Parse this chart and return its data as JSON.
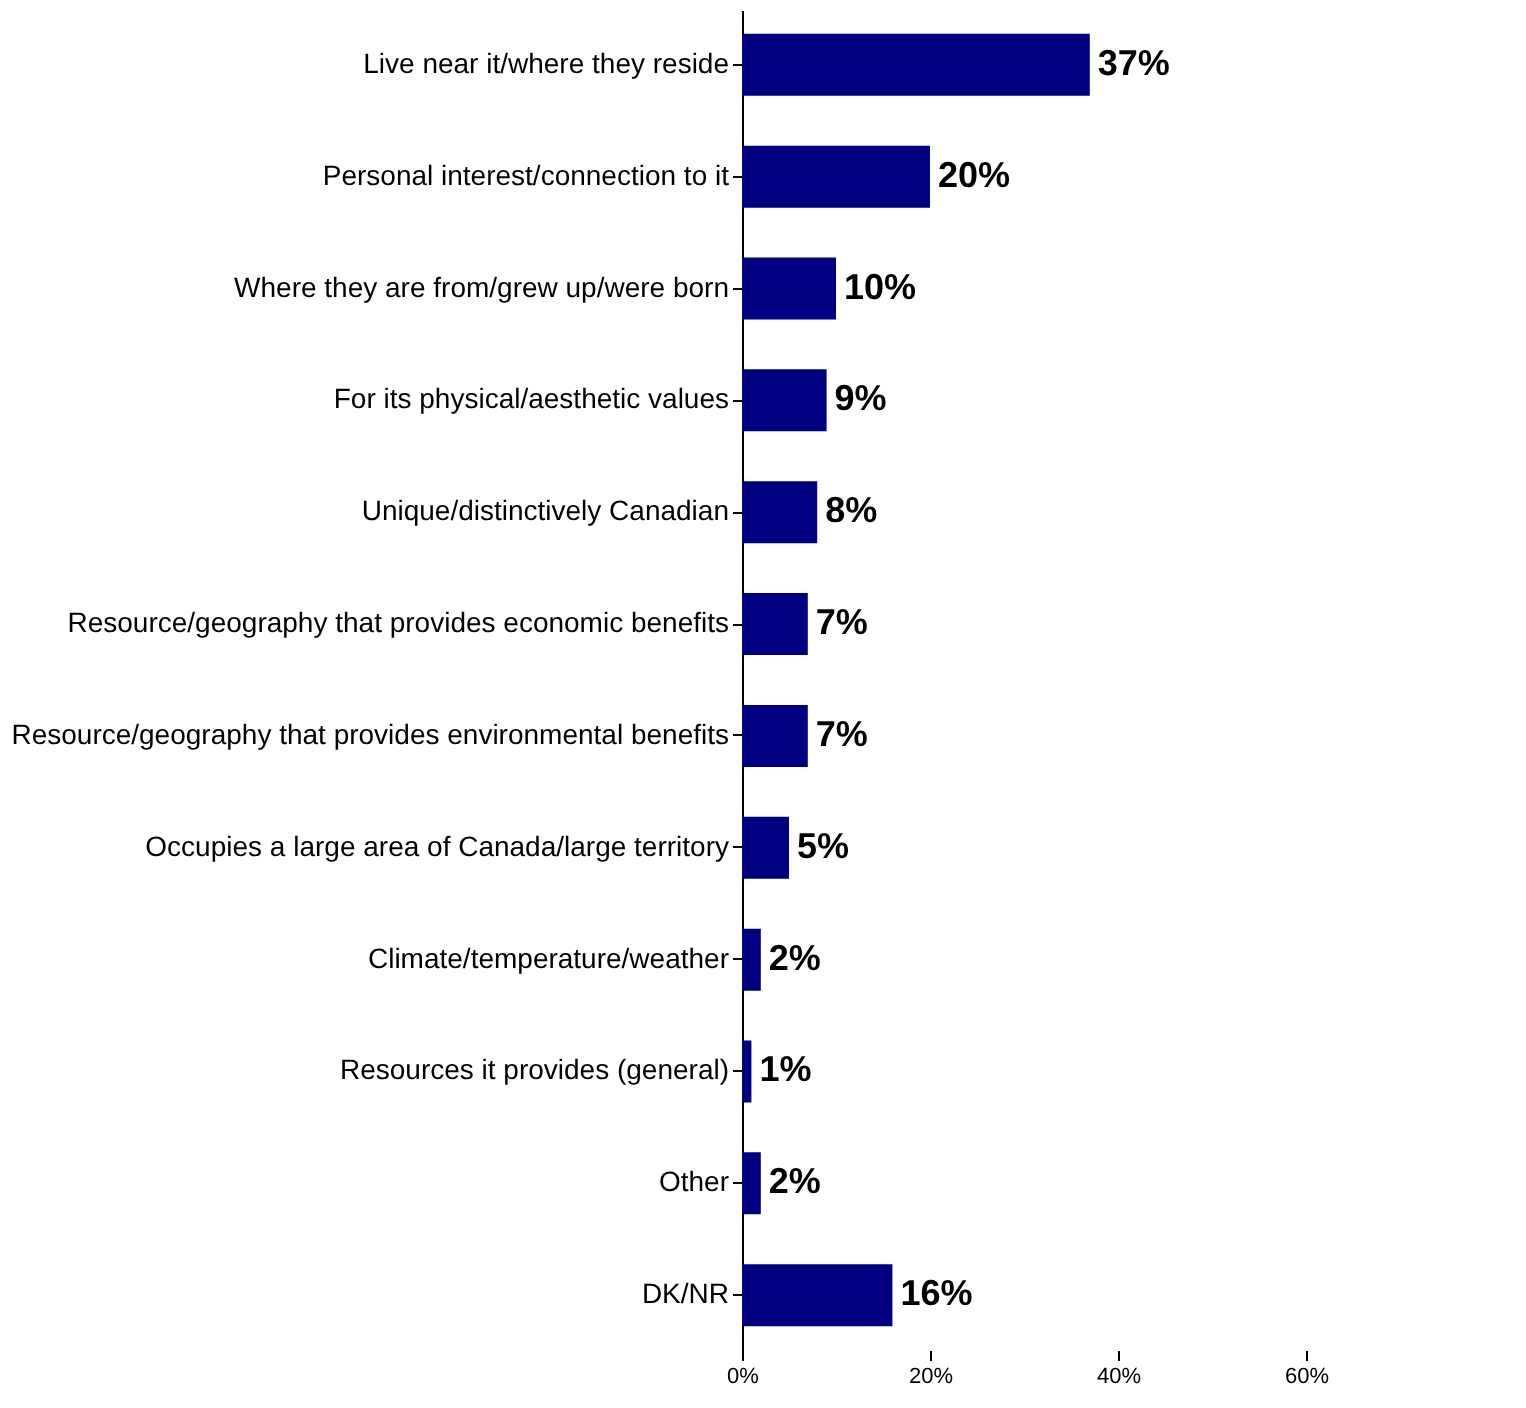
{
  "chart_data": {
    "type": "bar",
    "orientation": "horizontal",
    "categories": [
      "Live near it/where they reside",
      "Personal interest/connection to it",
      "Where they are from/grew up/were born",
      "For its physical/aesthetic values",
      "Unique/distinctively Canadian",
      "Resource/geography that provides economic benefits",
      "Resource/geography that provides environmental benefits",
      "Occupies a large area of Canada/large territory",
      "Climate/temperature/weather",
      "Resources it provides (general)",
      "Other",
      "DK/NR"
    ],
    "values": [
      37,
      20,
      10,
      9,
      8,
      7,
      7,
      5,
      2,
      1,
      2,
      16
    ],
    "value_labels": [
      "37%",
      "20%",
      "10%",
      "9%",
      "8%",
      "7%",
      "7%",
      "5%",
      "2%",
      "1%",
      "2%",
      "16%"
    ],
    "color": "#000080",
    "xlim": [
      0,
      60
    ],
    "xticks": [
      {
        "value": 0,
        "label": "0%"
      },
      {
        "value": 20,
        "label": "20%"
      },
      {
        "value": 40,
        "label": "40%"
      },
      {
        "value": 60,
        "label": "60%"
      }
    ],
    "grid": false
  }
}
